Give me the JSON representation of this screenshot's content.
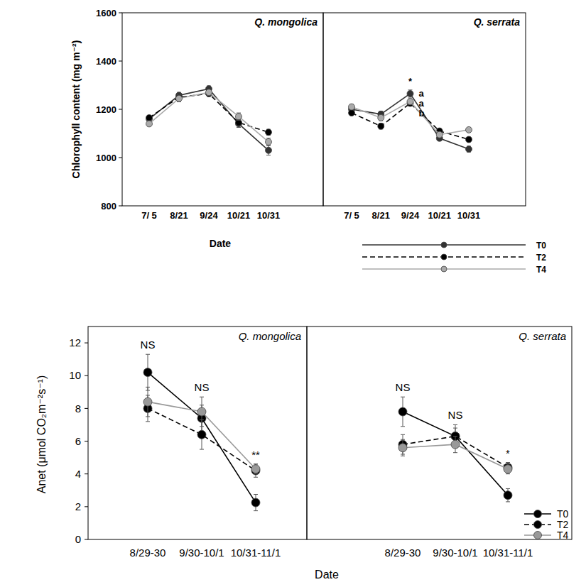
{
  "chart_data": [
    {
      "type": "line",
      "title": "Q. mongolica",
      "y_label": "Chlorophyll content (mg m⁻²)",
      "x_label": "Date",
      "categories": [
        "7/ 5",
        "8/21",
        "9/24",
        "10/21",
        "10/31"
      ],
      "ylim": [
        800,
        1600
      ],
      "yticks": [
        800,
        1000,
        1200,
        1400,
        1600
      ],
      "grid": false,
      "series": [
        {
          "color": "#333333",
          "line_style": "solid",
          "marker": "circle",
          "values": [
            1160,
            1258,
            1285,
            1140,
            1030
          ],
          "errors": [
            10,
            12,
            12,
            15,
            20
          ]
        },
        {
          "color": "#000000",
          "line_style": "dashed",
          "marker": "circle",
          "values": [
            1165,
            1250,
            1265,
            1145,
            1105
          ],
          "errors": [
            10,
            12,
            12,
            12,
            12
          ]
        },
        {
          "color": "#aaaaaa",
          "line_style": "solid",
          "marker": "circle",
          "values": [
            1140,
            1245,
            1270,
            1170,
            1065
          ],
          "errors": [
            10,
            14,
            12,
            15,
            15
          ]
        }
      ]
    },
    {
      "type": "line",
      "title": "Q. serrata",
      "tick_labels": "x",
      "legend": "lower right",
      "categories": [
        "7/ 5",
        "8/21",
        "9/24",
        "10/21",
        "10/31"
      ],
      "ylim": [
        800,
        1600
      ],
      "yticks": [
        800,
        1000,
        1200,
        1400,
        1600
      ],
      "grid": false,
      "series": [
        {
          "name": "T0",
          "color": "#333333",
          "line_style": "solid",
          "marker": "circle",
          "values": [
            1200,
            1180,
            1265,
            1080,
            1035
          ],
          "errors": [
            10,
            12,
            15,
            10,
            12
          ]
        },
        {
          "name": "T2",
          "color": "#000000",
          "line_style": "dashed",
          "marker": "circle",
          "values": [
            1185,
            1130,
            1225,
            1110,
            1075
          ],
          "errors": [
            10,
            12,
            12,
            10,
            10
          ]
        },
        {
          "name": "T4",
          "color": "#aaaaaa",
          "line_style": "solid",
          "marker": "circle",
          "values": [
            1210,
            1165,
            1232,
            1095,
            1115
          ],
          "errors": [
            10,
            12,
            12,
            10,
            10
          ]
        }
      ],
      "annotations": [
        {
          "text": "*",
          "category": "9/24"
        },
        {
          "text": "a",
          "category": "9/24",
          "series": 0
        },
        {
          "text": "a",
          "category": "9/24",
          "series": 1
        },
        {
          "text": "b",
          "category": "9/24",
          "series": 2
        }
      ]
    },
    {
      "type": "line",
      "title": "Q. mongolica",
      "y_label": "Anet (μmol CO₂m⁻²s⁻¹)",
      "x_label": "Date",
      "categories": [
        "8/29-30",
        "9/30-10/1",
        "10/31-11/1"
      ],
      "ylim": [
        0,
        13
      ],
      "yticks": [
        0,
        2,
        4,
        6,
        8,
        10,
        12
      ],
      "grid": false,
      "series": [
        {
          "color": "#000000",
          "line_style": "solid",
          "marker": "circle",
          "values": [
            10.2,
            7.4,
            2.25
          ],
          "errors": [
            1.1,
            0.8,
            0.5
          ]
        },
        {
          "color": "#000000",
          "line_style": "dashed",
          "marker": "circle",
          "values": [
            8.0,
            6.4,
            4.2
          ],
          "errors": [
            0.8,
            0.9,
            0.4
          ]
        },
        {
          "color": "#999999",
          "line_style": "solid",
          "marker": "circle",
          "values": [
            8.4,
            7.8,
            4.3
          ],
          "errors": [
            0.9,
            0.9,
            0.3
          ]
        }
      ],
      "annotations": [
        {
          "text": "NS",
          "category": "8/29-30"
        },
        {
          "text": "NS",
          "category": "9/30-10/1"
        },
        {
          "text": "**",
          "category": "10/31-11/1"
        }
      ]
    },
    {
      "type": "line",
      "title": "Q. serrata",
      "tick_labels": "x",
      "legend": "lower right",
      "categories": [
        "8/29-30",
        "9/30-10/1",
        "10/31-11/1"
      ],
      "ylim": [
        0,
        13
      ],
      "yticks": [
        0,
        2,
        4,
        6,
        8,
        10,
        12
      ],
      "grid": false,
      "series": [
        {
          "name": "T0",
          "color": "#000000",
          "line_style": "solid",
          "marker": "circle",
          "values": [
            7.8,
            6.3,
            2.7
          ],
          "errors": [
            0.9,
            0.5,
            0.4
          ]
        },
        {
          "name": "T2",
          "color": "#000000",
          "line_style": "dashed",
          "marker": "circle",
          "values": [
            5.8,
            6.3,
            4.4
          ],
          "errors": [
            0.6,
            0.7,
            0.3
          ]
        },
        {
          "name": "T4",
          "color": "#999999",
          "line_style": "solid",
          "marker": "circle",
          "values": [
            5.6,
            5.8,
            4.3
          ],
          "errors": [
            0.5,
            0.5,
            0.3
          ]
        }
      ],
      "annotations": [
        {
          "text": "NS",
          "category": "8/29-30"
        },
        {
          "text": "NS",
          "category": "9/30-10/1"
        },
        {
          "text": "*",
          "category": "10/31-11/1"
        }
      ]
    }
  ]
}
